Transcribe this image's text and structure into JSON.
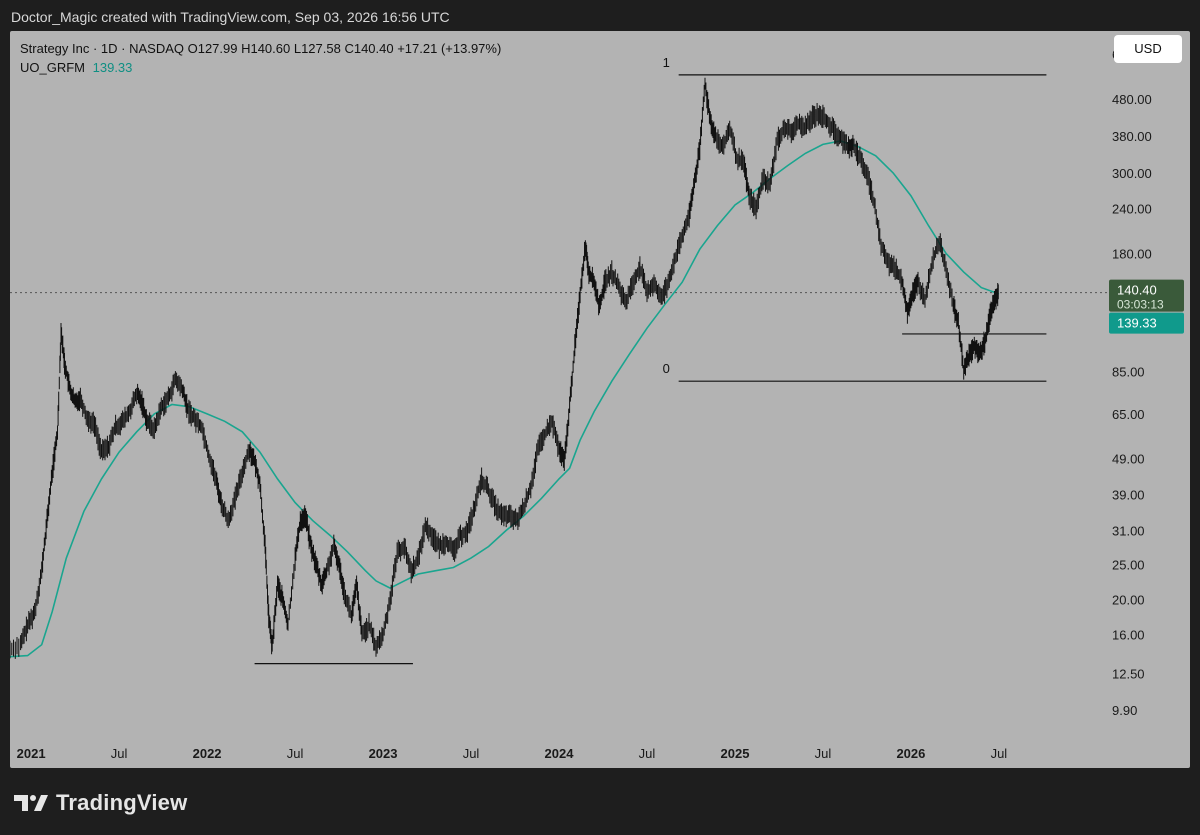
{
  "header": {
    "attribution": "Doctor_Magic created with TradingView.com, Sep 03, 2026 16:56 UTC"
  },
  "legend": {
    "symbol_line": "Strategy Inc · 1D · NASDAQ  O127.99  H140.60  L127.58  C140.40  +17.21 (+13.97%)",
    "indicator_name": "UO_GRFM",
    "indicator_value": "139.33"
  },
  "currency_button": "USD",
  "colors": {
    "panel_bg": "#b3b3b3",
    "price_line": "#111111",
    "ma_line": "#1aa58f",
    "last_price_badge": "#3a5a3a",
    "ma_badge": "#109a8c"
  },
  "chart_data": {
    "type": "line",
    "scale": "log",
    "y_ticks": [
      "640.00",
      "480.00",
      "380.00",
      "300.00",
      "240.00",
      "180.00",
      "140.00",
      "85.00",
      "65.00",
      "49.00",
      "39.00",
      "31.00",
      "25.00",
      "20.00",
      "16.00",
      "12.50",
      "9.90"
    ],
    "x_ticks": [
      {
        "label": "2021",
        "bold": true,
        "date": 2021.0
      },
      {
        "label": "Jul",
        "bold": false,
        "date": 2021.5
      },
      {
        "label": "2022",
        "bold": true,
        "date": 2022.0
      },
      {
        "label": "Jul",
        "bold": false,
        "date": 2022.5
      },
      {
        "label": "2023",
        "bold": true,
        "date": 2023.0
      },
      {
        "label": "Jul",
        "bold": false,
        "date": 2023.5
      },
      {
        "label": "2024",
        "bold": true,
        "date": 2024.0
      },
      {
        "label": "Jul",
        "bold": false,
        "date": 2024.5
      },
      {
        "label": "2025",
        "bold": true,
        "date": 2025.0
      },
      {
        "label": "Jul",
        "bold": false,
        "date": 2025.5
      },
      {
        "label": "2026",
        "bold": true,
        "date": 2026.0
      },
      {
        "label": "Jul",
        "bold": false,
        "date": 2026.5
      }
    ],
    "x_range": [
      2020.88,
      2027.12
    ],
    "y_range": [
      8.4,
      740
    ],
    "price_series": {
      "name": "Strategy Inc",
      "points": [
        [
          2020.88,
          14.6
        ],
        [
          2020.94,
          15.0
        ],
        [
          2020.98,
          17.0
        ],
        [
          2021.02,
          18.5
        ],
        [
          2021.06,
          24
        ],
        [
          2021.09,
          33
        ],
        [
          2021.12,
          45
        ],
        [
          2021.15,
          58
        ],
        [
          2021.17,
          110
        ],
        [
          2021.19,
          90
        ],
        [
          2021.22,
          76
        ],
        [
          2021.25,
          70
        ],
        [
          2021.28,
          72
        ],
        [
          2021.32,
          63
        ],
        [
          2021.36,
          61
        ],
        [
          2021.4,
          51
        ],
        [
          2021.44,
          53
        ],
        [
          2021.48,
          60
        ],
        [
          2021.52,
          62
        ],
        [
          2021.56,
          66
        ],
        [
          2021.6,
          74
        ],
        [
          2021.63,
          70
        ],
        [
          2021.66,
          62
        ],
        [
          2021.7,
          59
        ],
        [
          2021.74,
          68
        ],
        [
          2021.78,
          72
        ],
        [
          2021.82,
          81
        ],
        [
          2021.86,
          76
        ],
        [
          2021.89,
          67
        ],
        [
          2021.93,
          63
        ],
        [
          2021.97,
          60
        ],
        [
          2022.01,
          50
        ],
        [
          2022.05,
          43
        ],
        [
          2022.08,
          37
        ],
        [
          2022.12,
          33
        ],
        [
          2022.16,
          38
        ],
        [
          2022.2,
          45
        ],
        [
          2022.24,
          52
        ],
        [
          2022.27,
          48
        ],
        [
          2022.3,
          42
        ],
        [
          2022.33,
          28
        ],
        [
          2022.35,
          18
        ],
        [
          2022.37,
          14.8
        ],
        [
          2022.4,
          22
        ],
        [
          2022.43,
          20
        ],
        [
          2022.46,
          17
        ],
        [
          2022.5,
          26
        ],
        [
          2022.53,
          33
        ],
        [
          2022.56,
          34
        ],
        [
          2022.59,
          28
        ],
        [
          2022.62,
          25
        ],
        [
          2022.65,
          22
        ],
        [
          2022.68,
          24
        ],
        [
          2022.72,
          28
        ],
        [
          2022.75,
          25
        ],
        [
          2022.78,
          21
        ],
        [
          2022.82,
          18
        ],
        [
          2022.85,
          22
        ],
        [
          2022.88,
          16
        ],
        [
          2022.92,
          17
        ],
        [
          2022.96,
          14.8
        ],
        [
          2023.0,
          16
        ],
        [
          2023.04,
          20
        ],
        [
          2023.08,
          27
        ],
        [
          2023.12,
          28
        ],
        [
          2023.16,
          24
        ],
        [
          2023.2,
          26
        ],
        [
          2023.24,
          32
        ],
        [
          2023.28,
          30
        ],
        [
          2023.32,
          28
        ],
        [
          2023.36,
          29
        ],
        [
          2023.4,
          27
        ],
        [
          2023.44,
          30
        ],
        [
          2023.48,
          31
        ],
        [
          2023.52,
          36
        ],
        [
          2023.56,
          43
        ],
        [
          2023.6,
          40
        ],
        [
          2023.64,
          36
        ],
        [
          2023.68,
          34
        ],
        [
          2023.72,
          34
        ],
        [
          2023.76,
          33
        ],
        [
          2023.8,
          36
        ],
        [
          2023.84,
          41
        ],
        [
          2023.88,
          52
        ],
        [
          2023.92,
          57
        ],
        [
          2023.96,
          62
        ],
        [
          2024.0,
          52
        ],
        [
          2024.03,
          48
        ],
        [
          2024.06,
          68
        ],
        [
          2024.09,
          100
        ],
        [
          2024.12,
          140
        ],
        [
          2024.15,
          190
        ],
        [
          2024.17,
          160
        ],
        [
          2024.2,
          150
        ],
        [
          2024.23,
          128
        ],
        [
          2024.26,
          150
        ],
        [
          2024.3,
          160
        ],
        [
          2024.34,
          145
        ],
        [
          2024.38,
          132
        ],
        [
          2024.42,
          150
        ],
        [
          2024.46,
          165
        ],
        [
          2024.5,
          140
        ],
        [
          2024.54,
          150
        ],
        [
          2024.58,
          135
        ],
        [
          2024.62,
          150
        ],
        [
          2024.66,
          175
        ],
        [
          2024.7,
          200
        ],
        [
          2024.74,
          230
        ],
        [
          2024.77,
          285
        ],
        [
          2024.8,
          350
        ],
        [
          2024.83,
          530
        ],
        [
          2024.86,
          420
        ],
        [
          2024.89,
          380
        ],
        [
          2024.93,
          350
        ],
        [
          2024.97,
          400
        ],
        [
          2025.01,
          330
        ],
        [
          2025.05,
          320
        ],
        [
          2025.08,
          260
        ],
        [
          2025.12,
          240
        ],
        [
          2025.16,
          290
        ],
        [
          2025.2,
          280
        ],
        [
          2025.24,
          370
        ],
        [
          2025.28,
          400
        ],
        [
          2025.32,
          390
        ],
        [
          2025.36,
          410
        ],
        [
          2025.4,
          400
        ],
        [
          2025.44,
          430
        ],
        [
          2025.48,
          440
        ],
        [
          2025.52,
          420
        ],
        [
          2025.56,
          395
        ],
        [
          2025.6,
          375
        ],
        [
          2025.64,
          355
        ],
        [
          2025.67,
          360
        ],
        [
          2025.71,
          330
        ],
        [
          2025.75,
          300
        ],
        [
          2025.79,
          250
        ],
        [
          2025.83,
          190
        ],
        [
          2025.87,
          170
        ],
        [
          2025.91,
          165
        ],
        [
          2025.95,
          150
        ],
        [
          2025.98,
          125
        ],
        [
          2026.01,
          140
        ],
        [
          2026.04,
          150
        ],
        [
          2026.08,
          135
        ],
        [
          2026.12,
          170
        ],
        [
          2026.16,
          195
        ],
        [
          2026.2,
          165
        ],
        [
          2026.24,
          130
        ],
        [
          2026.27,
          115
        ],
        [
          2026.3,
          86
        ],
        [
          2026.33,
          94
        ],
        [
          2026.36,
          100
        ],
        [
          2026.39,
          95
        ],
        [
          2026.42,
          103
        ],
        [
          2026.45,
          122
        ],
        [
          2026.48,
          135
        ],
        [
          2026.5,
          140.4
        ]
      ]
    },
    "ma_series": {
      "name": "UO_GRFM",
      "points": [
        [
          2020.88,
          13.9
        ],
        [
          2020.98,
          14.0
        ],
        [
          2021.06,
          15.0
        ],
        [
          2021.12,
          18.5
        ],
        [
          2021.2,
          26
        ],
        [
          2021.3,
          35
        ],
        [
          2021.4,
          43
        ],
        [
          2021.5,
          51
        ],
        [
          2021.6,
          58
        ],
        [
          2021.7,
          65
        ],
        [
          2021.8,
          69
        ],
        [
          2021.9,
          68
        ],
        [
          2022.0,
          65
        ],
        [
          2022.1,
          62
        ],
        [
          2022.2,
          58
        ],
        [
          2022.3,
          51
        ],
        [
          2022.4,
          43
        ],
        [
          2022.5,
          37
        ],
        [
          2022.6,
          33
        ],
        [
          2022.7,
          30
        ],
        [
          2022.8,
          27
        ],
        [
          2022.9,
          24
        ],
        [
          2022.96,
          22.5
        ],
        [
          2023.04,
          21.5
        ],
        [
          2023.12,
          22.5
        ],
        [
          2023.2,
          23.5
        ],
        [
          2023.3,
          24
        ],
        [
          2023.4,
          24.5
        ],
        [
          2023.5,
          26
        ],
        [
          2023.6,
          28
        ],
        [
          2023.7,
          31
        ],
        [
          2023.8,
          34
        ],
        [
          2023.9,
          38
        ],
        [
          2024.0,
          43
        ],
        [
          2024.06,
          46
        ],
        [
          2024.12,
          55
        ],
        [
          2024.2,
          66
        ],
        [
          2024.3,
          80
        ],
        [
          2024.4,
          95
        ],
        [
          2024.5,
          112
        ],
        [
          2024.6,
          130
        ],
        [
          2024.7,
          150
        ],
        [
          2024.8,
          185
        ],
        [
          2024.9,
          215
        ],
        [
          2025.0,
          245
        ],
        [
          2025.1,
          265
        ],
        [
          2025.2,
          290
        ],
        [
          2025.3,
          315
        ],
        [
          2025.4,
          340
        ],
        [
          2025.5,
          360
        ],
        [
          2025.6,
          368
        ],
        [
          2025.7,
          355
        ],
        [
          2025.8,
          335
        ],
        [
          2025.9,
          300
        ],
        [
          2026.0,
          260
        ],
        [
          2026.1,
          215
        ],
        [
          2026.2,
          180
        ],
        [
          2026.3,
          160
        ],
        [
          2026.4,
          145
        ],
        [
          2026.5,
          139.33
        ]
      ]
    },
    "horizontal_levels": [
      {
        "label": "1",
        "value": 560,
        "x_from": 2024.68,
        "x_to": 2026.77
      },
      {
        "label": "0",
        "value": 80,
        "x_from": 2024.68,
        "x_to": 2026.77
      },
      {
        "label": "",
        "value": 108,
        "x_from": 2025.95,
        "x_to": 2026.77
      },
      {
        "label": "",
        "value": 13.3,
        "x_from": 2022.27,
        "x_to": 2023.17
      }
    ],
    "last_price": {
      "value": 140.4,
      "label": "140.40",
      "countdown": "03:03:13"
    },
    "ma_last": {
      "value": 139.33,
      "label": "139.33"
    }
  },
  "footer": {
    "brand": "TradingView"
  }
}
